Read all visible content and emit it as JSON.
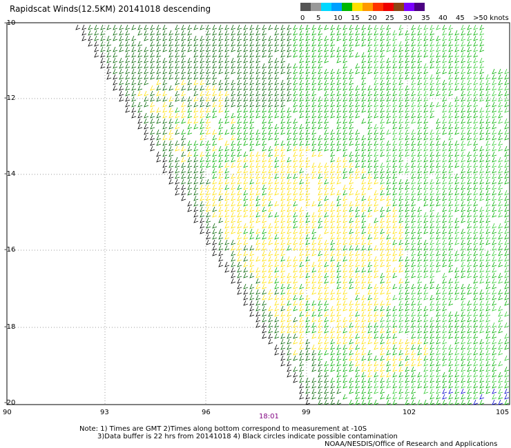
{
  "title": "Rapidscat Winds(12.5KM) 20141018 descending",
  "legend": {
    "labels": [
      "0",
      "5",
      "10",
      "15",
      "20",
      "25",
      "30",
      "35",
      "40",
      "45",
      ">50 knots"
    ],
    "colors": [
      "#555555",
      "#999999",
      "#00d8ff",
      "#00a0ff",
      "#00b800",
      "#ffe000",
      "#ff9900",
      "#ff3300",
      "#ee0000",
      "#8b4513",
      "#7a00ff",
      "#4b0082"
    ]
  },
  "lat_labels": [
    "-10",
    "-12",
    "-14",
    "-16",
    "-18",
    "-20"
  ],
  "lon_labels": [
    "90",
    "93",
    "96",
    "99",
    "102",
    "105"
  ],
  "time_label": "18:01",
  "notes": {
    "line1": "Note: 1) Times are GMT 2)Times along bottom correspond to measurement at -10S",
    "line2": "3)Data buffer is 22 hrs from 20141018 4) Black circles indicate possible contamination",
    "line3": "NOAA/NESDIS/Office of Research and Applications"
  },
  "wind_colors": {
    "dark_green": "#006400",
    "green": "#00b000",
    "light_green": "#33cc33",
    "yellow": "#ffe000",
    "black": "#000000",
    "blue": "#0000cc"
  }
}
